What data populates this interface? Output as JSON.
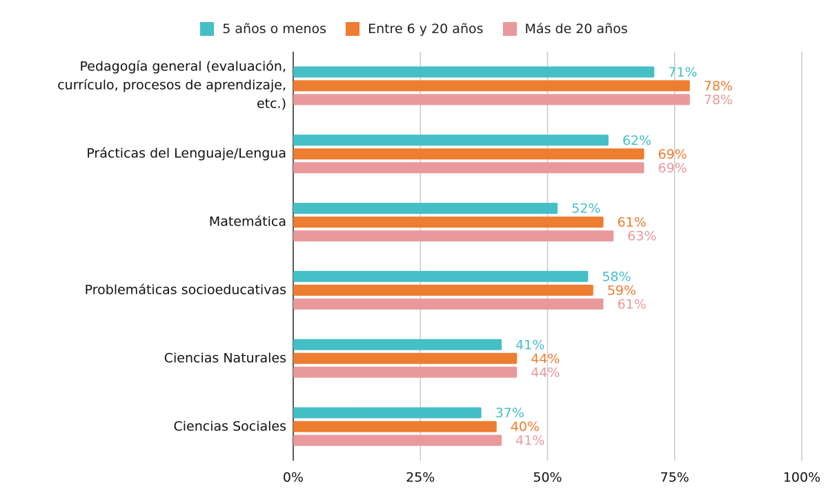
{
  "chart_data": {
    "type": "bar",
    "orientation": "horizontal",
    "categories": [
      "Pedagogía general (evaluación, currículo, procesos de aprendizaje, etc.)",
      "Prácticas del Lenguaje/Lengua",
      "Matemática",
      "Problemáticas socioeducativas",
      "Ciencias Naturales",
      "Ciencias Sociales"
    ],
    "series": [
      {
        "name": "5 años o menos",
        "color": "#45bfc6",
        "values": [
          71,
          62,
          52,
          58,
          41,
          37
        ],
        "value_labels": [
          "71%",
          "62%",
          "52%",
          "58%",
          "41%",
          "37%"
        ]
      },
      {
        "name": "Entre 6 y 20 años",
        "color": "#ed7d31",
        "values": [
          78,
          69,
          61,
          59,
          44,
          40
        ],
        "value_labels": [
          "78%",
          "69%",
          "61%",
          "59%",
          "44%",
          "40%"
        ]
      },
      {
        "name": "Más de 20 años",
        "color": "#e9999b",
        "values": [
          78,
          69,
          63,
          61,
          44,
          41
        ],
        "value_labels": [
          "78%",
          "69%",
          "63%",
          "61%",
          "44%",
          "41%"
        ]
      }
    ],
    "xlim": [
      0,
      100
    ],
    "xticks": [
      {
        "value": 0,
        "label": "0%"
      },
      {
        "value": 25,
        "label": "25%"
      },
      {
        "value": 50,
        "label": "50%"
      },
      {
        "value": 75,
        "label": "75%"
      },
      {
        "value": 100,
        "label": "100%"
      }
    ],
    "grid": true,
    "legend": "top"
  }
}
